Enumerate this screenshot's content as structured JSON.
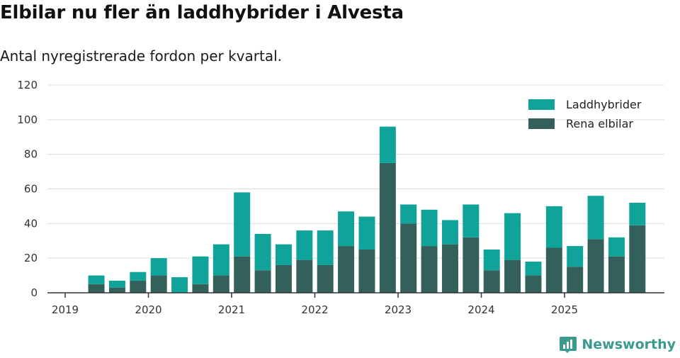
{
  "title": "Elbilar nu fler än laddhybrider i Alvesta",
  "subtitle": "Antal nyregistrerade fordon per kvartal.",
  "brand": {
    "name": "Newsworthy",
    "icon": "bar-chart-logo-icon"
  },
  "colors": {
    "hybrid": "#0fa39a",
    "electric": "#33605a",
    "grid": "#dddddd",
    "axis": "#333333"
  },
  "chart_data": {
    "type": "bar",
    "stacked": true,
    "title": "Elbilar nu fler än laddhybrider i Alvesta",
    "subtitle": "Antal nyregistrerade fordon per kvartal.",
    "xlabel": "",
    "ylabel": "",
    "ylim": [
      0,
      120
    ],
    "yticks": [
      0,
      20,
      40,
      60,
      80,
      100,
      120
    ],
    "year_ticks": [
      "2019",
      "2020",
      "2021",
      "2022",
      "2023",
      "2024",
      "2025"
    ],
    "first_year": 2019,
    "categories": [
      "2019 Q2",
      "2019 Q3",
      "2019 Q4",
      "2020 Q1",
      "2020 Q2",
      "2020 Q3",
      "2020 Q4",
      "2021 Q1",
      "2021 Q2",
      "2021 Q3",
      "2021 Q4",
      "2022 Q1",
      "2022 Q2",
      "2022 Q3",
      "2022 Q4",
      "2023 Q1",
      "2023 Q2",
      "2023 Q3",
      "2023 Q4",
      "2024 Q1",
      "2024 Q2",
      "2024 Q3",
      "2024 Q4",
      "2025 Q1",
      "2025 Q2",
      "2025 Q3",
      "2025 Q4"
    ],
    "series": [
      {
        "name": "Rena elbilar",
        "values": [
          5,
          3,
          7,
          10,
          0,
          5,
          10,
          21,
          13,
          16,
          19,
          16,
          27,
          25,
          75,
          40,
          27,
          28,
          32,
          13,
          19,
          10,
          26,
          15,
          31,
          21,
          39
        ]
      },
      {
        "name": "Laddhybrider",
        "values": [
          5,
          4,
          5,
          10,
          9,
          16,
          18,
          37,
          21,
          12,
          17,
          20,
          20,
          19,
          21,
          11,
          21,
          14,
          19,
          12,
          27,
          8,
          24,
          12,
          25,
          11,
          13
        ]
      }
    ],
    "legend": {
      "position": "top-right",
      "order": [
        "Laddhybrider",
        "Rena elbilar"
      ]
    },
    "grid": true
  }
}
